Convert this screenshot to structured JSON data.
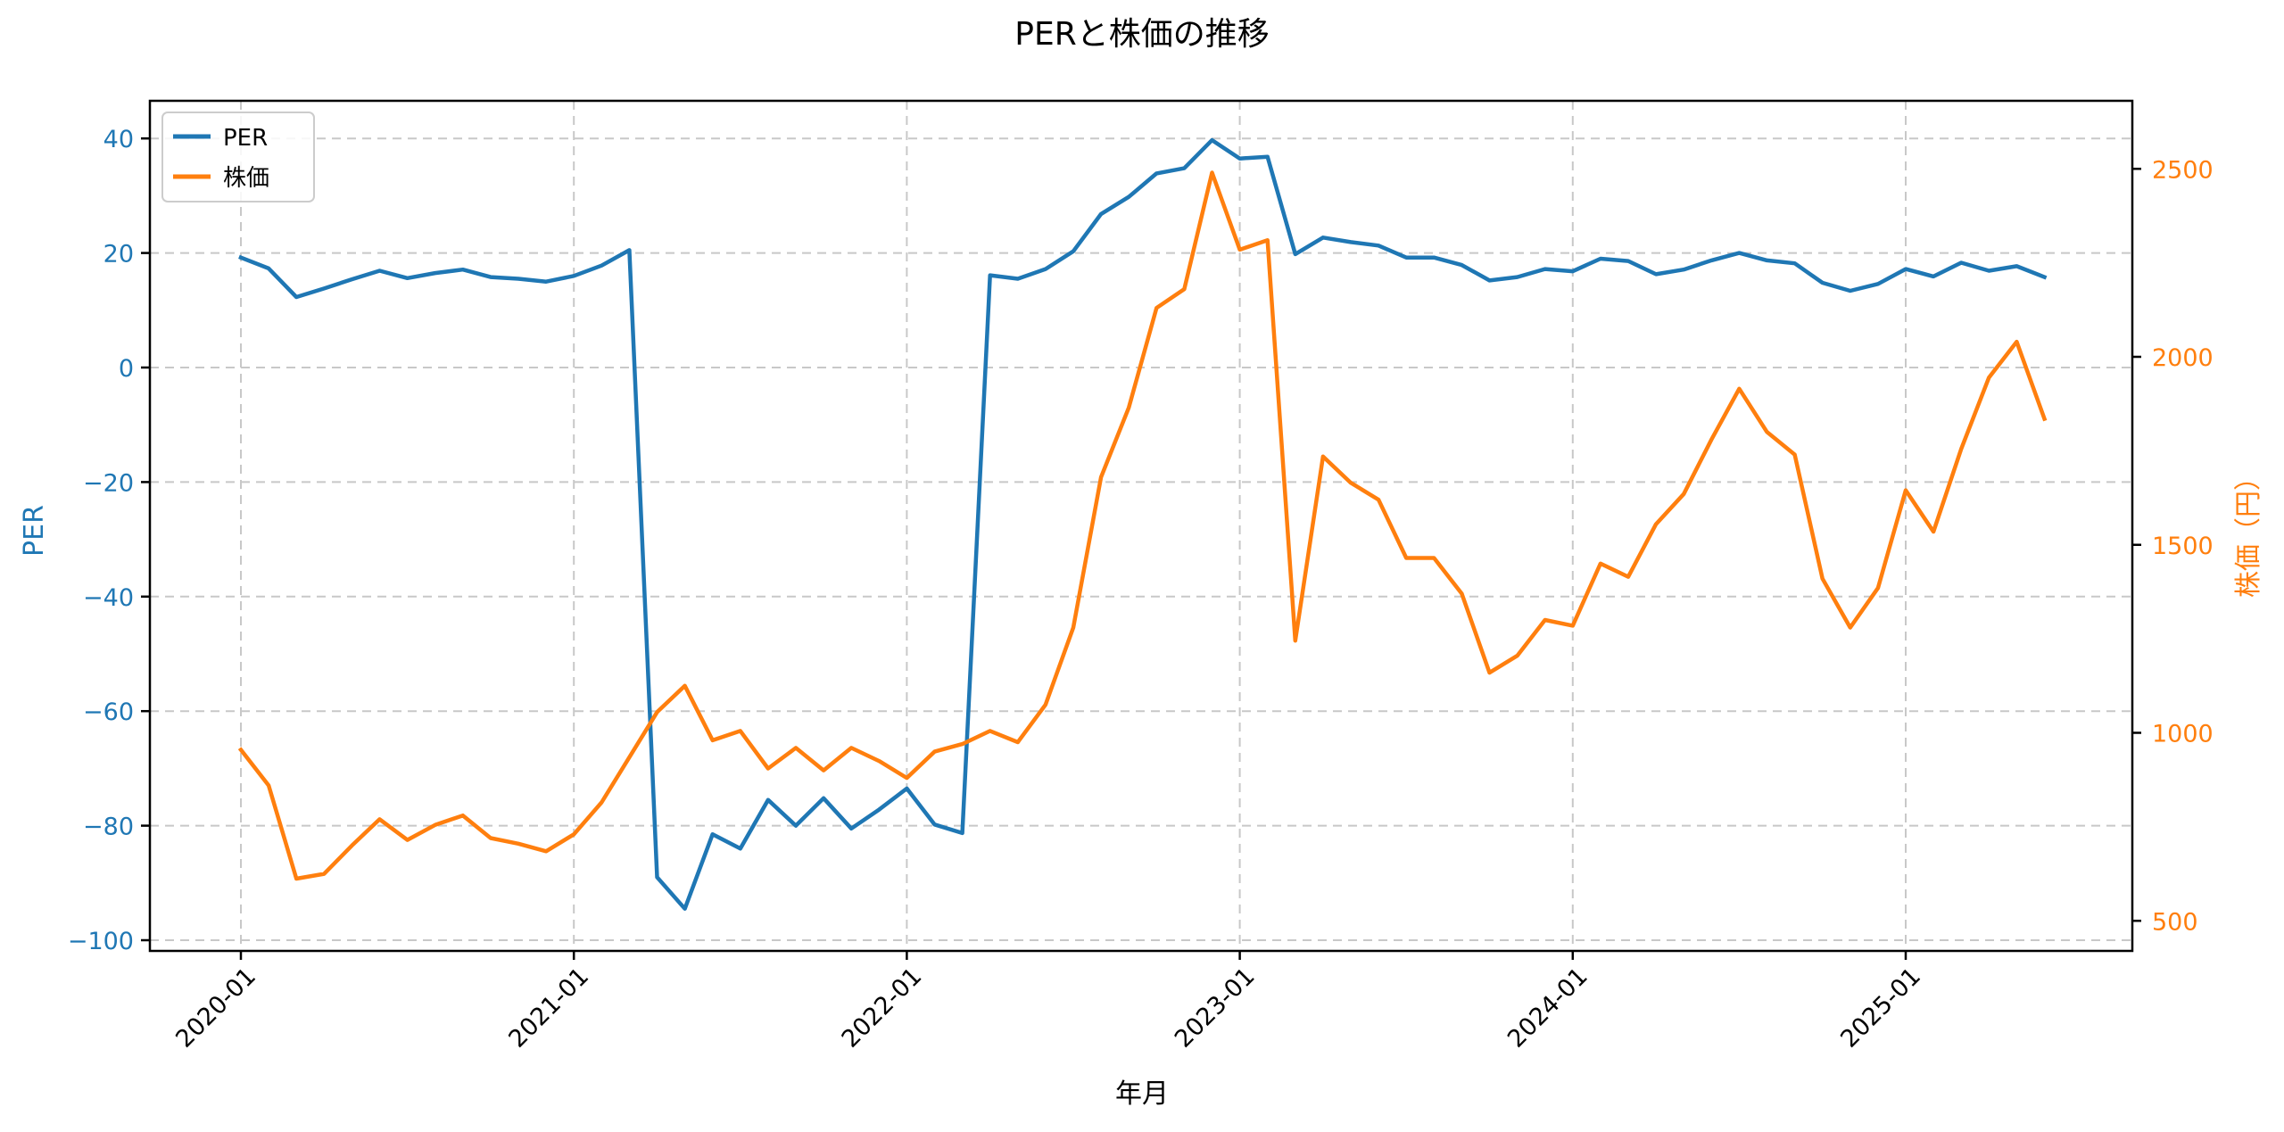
{
  "chart_data": {
    "type": "line",
    "title": "PERと株価の推移",
    "xlabel": "年月",
    "ylabel": "PER",
    "y2label": "株価（円）",
    "ylim": [
      -101,
      46
    ],
    "y2lim": [
      420,
      2650
    ],
    "grid": true,
    "legend_position": "upper left",
    "x_tick_labels": [
      "2020-01",
      "2021-01",
      "2022-01",
      "2023-01",
      "2024-01",
      "2025-01"
    ],
    "y_ticks": [
      40,
      20,
      0,
      -20,
      -40,
      -60,
      -80,
      -100
    ],
    "y_tick_labels": [
      "40",
      "20",
      "0",
      "−20",
      "−40",
      "−60",
      "−80",
      "−100"
    ],
    "y2_ticks": [
      2500,
      2000,
      1500,
      1000,
      500
    ],
    "y2_tick_labels": [
      "2500",
      "2000",
      "1500",
      "1000",
      "500"
    ],
    "x": [
      "2020-01",
      "2020-02",
      "2020-03",
      "2020-04",
      "2020-05",
      "2020-06",
      "2020-07",
      "2020-08",
      "2020-09",
      "2020-10",
      "2020-11",
      "2020-12",
      "2021-01",
      "2021-02",
      "2021-03",
      "2021-04",
      "2021-05",
      "2021-06",
      "2021-07",
      "2021-08",
      "2021-09",
      "2021-10",
      "2021-11",
      "2021-12",
      "2022-01",
      "2022-02",
      "2022-03",
      "2022-04",
      "2022-05",
      "2022-06",
      "2022-07",
      "2022-08",
      "2022-09",
      "2022-10",
      "2022-11",
      "2022-12",
      "2023-01",
      "2023-02",
      "2023-03",
      "2023-04",
      "2023-05",
      "2023-06",
      "2023-07",
      "2023-08",
      "2023-09",
      "2023-10",
      "2023-11",
      "2023-12",
      "2024-01",
      "2024-02",
      "2024-03",
      "2024-04",
      "2024-05",
      "2024-06",
      "2024-07",
      "2024-08",
      "2024-09",
      "2024-10",
      "2024-11",
      "2024-12",
      "2025-01",
      "2025-02",
      "2025-03",
      "2025-04",
      "2025-05",
      "2025-06"
    ],
    "series": [
      {
        "name": "PER",
        "axis": "left",
        "color": "#1f77b4",
        "values": [
          19.2,
          17.3,
          12.3,
          13.8,
          15.4,
          16.9,
          15.6,
          16.5,
          17.1,
          15.8,
          15.5,
          15.0,
          16.0,
          17.8,
          20.5,
          -89.0,
          -94.5,
          -81.5,
          -84.0,
          -75.5,
          -80.0,
          -75.2,
          -80.5,
          -77.2,
          -73.5,
          -79.8,
          -81.3,
          16.1,
          15.5,
          17.2,
          20.3,
          26.8,
          29.8,
          33.9,
          34.8,
          39.7,
          36.5,
          36.8,
          19.8,
          22.7,
          21.9,
          21.3,
          19.2,
          19.2,
          17.9,
          15.2,
          15.8,
          17.2,
          16.8,
          19.0,
          18.6,
          16.3,
          17.1,
          18.7,
          20.0,
          18.7,
          18.2,
          14.8,
          13.4,
          14.6,
          17.2,
          15.9,
          18.3,
          16.9,
          17.7,
          15.8
        ]
      },
      {
        "name": "株価",
        "axis": "right",
        "color": "#ff7f0e",
        "values": [
          955,
          860,
          612,
          625,
          700,
          770,
          715,
          755,
          780,
          720,
          705,
          685,
          730,
          815,
          935,
          1055,
          1125,
          980,
          1005,
          905,
          960,
          900,
          960,
          925,
          880,
          950,
          970,
          1005,
          975,
          1075,
          1280,
          1680,
          1865,
          2130,
          2180,
          2490,
          2285,
          2310,
          1245,
          1735,
          1665,
          1620,
          1465,
          1465,
          1370,
          1160,
          1205,
          1300,
          1285,
          1450,
          1415,
          1555,
          1635,
          1780,
          1915,
          1800,
          1740,
          1410,
          1280,
          1385,
          1645,
          1535,
          1755,
          1945,
          2040,
          1835
        ]
      }
    ]
  },
  "legend": {
    "items": [
      {
        "label": "PER",
        "color": "#1f77b4"
      },
      {
        "label": "株価",
        "color": "#ff7f0e"
      }
    ]
  }
}
